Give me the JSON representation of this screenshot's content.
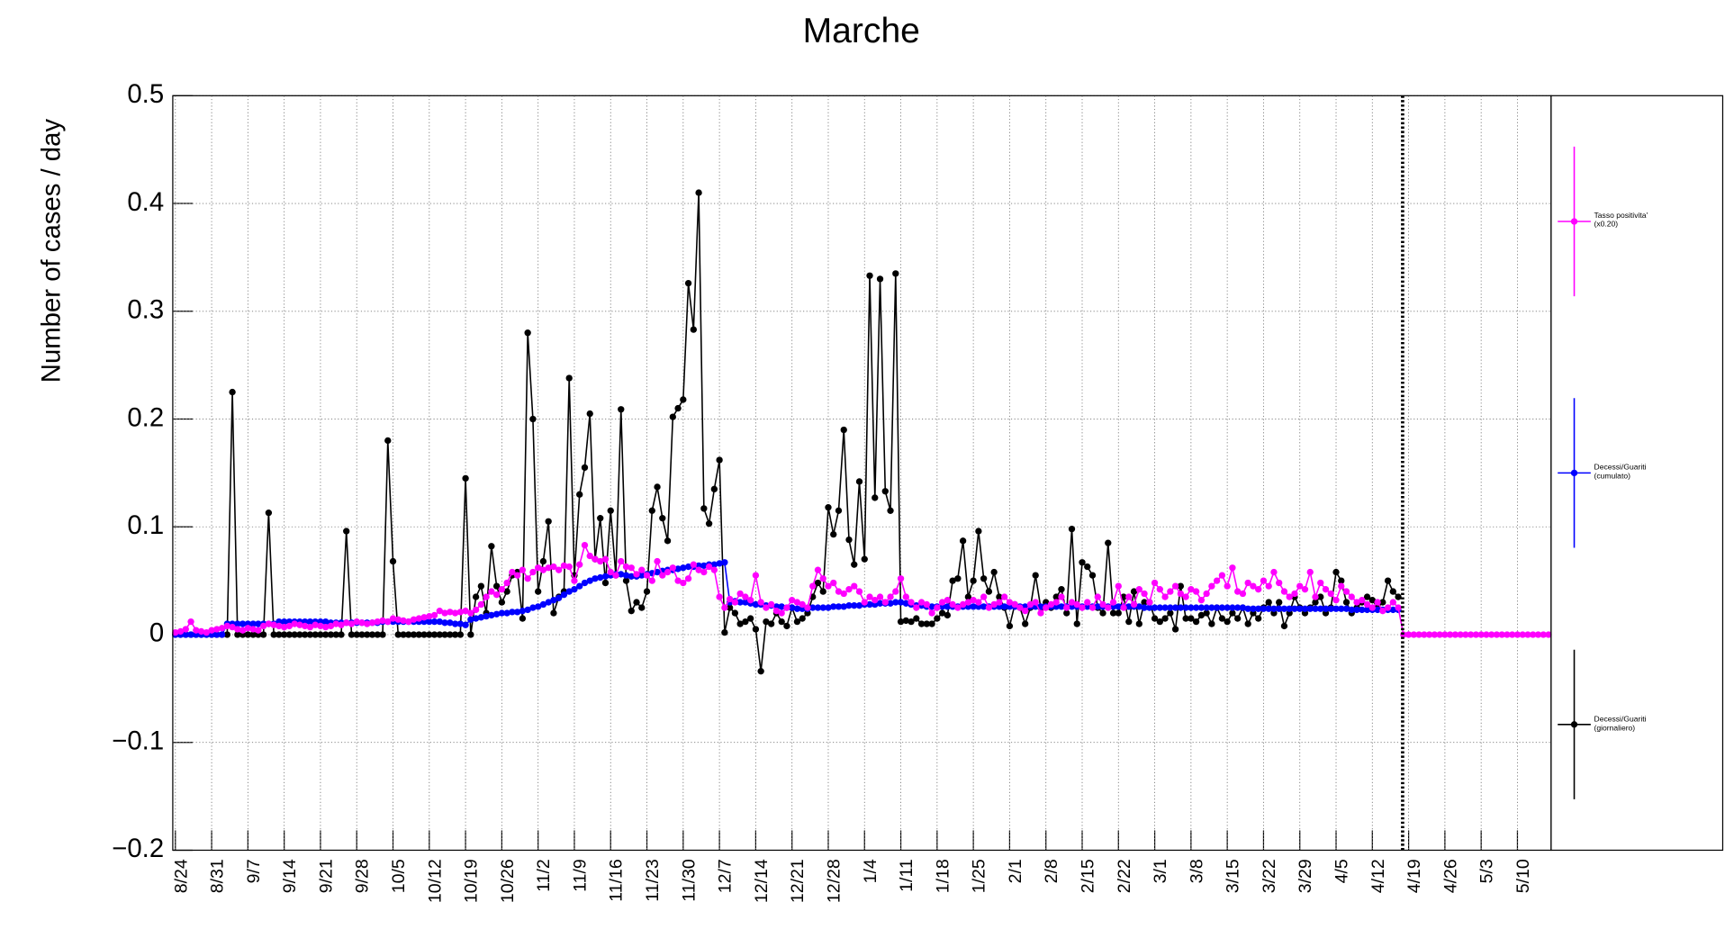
{
  "chart_data": {
    "type": "line",
    "title": "Marche",
    "y_label": "Number of cases / day",
    "categories": [
      "8/24",
      null,
      null,
      null,
      null,
      null,
      null,
      "8/31",
      null,
      null,
      null,
      null,
      null,
      null,
      "9/7",
      null,
      null,
      null,
      null,
      null,
      null,
      "9/14",
      null,
      null,
      null,
      null,
      null,
      null,
      "9/21",
      null,
      null,
      null,
      null,
      null,
      null,
      "9/28",
      null,
      null,
      null,
      null,
      null,
      null,
      "10/5",
      null,
      null,
      null,
      null,
      null,
      null,
      "10/12",
      null,
      null,
      null,
      null,
      null,
      null,
      "10/19",
      null,
      null,
      null,
      null,
      null,
      null,
      "10/26",
      null,
      null,
      null,
      null,
      null,
      null,
      "11/2",
      null,
      null,
      null,
      null,
      null,
      null,
      "11/9",
      null,
      null,
      null,
      null,
      null,
      null,
      "11/16",
      null,
      null,
      null,
      null,
      null,
      null,
      "11/23",
      null,
      null,
      null,
      null,
      null,
      null,
      "11/30",
      null,
      null,
      null,
      null,
      null,
      null,
      "12/7",
      null,
      null,
      null,
      null,
      null,
      null,
      "12/14",
      null,
      null,
      null,
      null,
      null,
      null,
      "12/21",
      null,
      null,
      null,
      null,
      null,
      null,
      "12/28",
      null,
      null,
      null,
      null,
      null,
      null,
      "1/4",
      null,
      null,
      null,
      null,
      null,
      null,
      "1/11",
      null,
      null,
      null,
      null,
      null,
      null,
      "1/18",
      null,
      null,
      null,
      null,
      null,
      null,
      "1/25",
      null,
      null,
      null,
      null,
      null,
      null,
      "2/1",
      null,
      null,
      null,
      null,
      null,
      null,
      "2/8",
      null,
      null,
      null,
      null,
      null,
      null,
      "2/15",
      null,
      null,
      null,
      null,
      null,
      null,
      "2/22",
      null,
      null,
      null,
      null,
      null,
      null,
      "3/1",
      null,
      null,
      null,
      null,
      null,
      null,
      "3/8",
      null,
      null,
      null,
      null,
      null,
      null,
      "3/15",
      null,
      null,
      null,
      null,
      null,
      null,
      "3/22",
      null,
      null,
      null,
      null,
      null,
      null,
      "3/29",
      null,
      null,
      null,
      null,
      null,
      null,
      "4/5",
      null,
      null,
      null,
      null,
      null,
      null,
      "4/12",
      null,
      null,
      null,
      null,
      null,
      null,
      "4/19",
      null,
      null,
      null,
      null,
      null,
      null,
      "4/26",
      null,
      null,
      null,
      null,
      null,
      null,
      "5/3",
      null,
      null,
      null,
      null,
      null,
      null,
      "5/10",
      null,
      null,
      null,
      null,
      null,
      null
    ],
    "ylim": [
      -0.2,
      0.5
    ],
    "yticks": [
      {
        "value": -0.2,
        "label": "−0.2"
      },
      {
        "value": -0.1,
        "label": "−0.1"
      },
      0,
      0.1,
      0.2,
      0.3,
      0.4,
      0.5
    ],
    "grid": true,
    "legend": "right",
    "series": [
      {
        "name": "Decessi/Guariti (giornaliero)",
        "color": "#000000",
        "values": [
          0,
          0,
          0,
          0,
          0,
          0,
          0,
          0,
          0,
          0,
          0,
          0.225,
          0,
          0,
          0,
          0,
          0,
          0,
          0.113,
          0,
          0,
          0,
          0,
          0,
          0,
          0,
          0,
          0,
          0,
          0,
          0,
          0,
          0,
          0.096,
          0,
          0,
          0,
          0,
          0,
          0,
          0,
          0.18,
          0.068,
          0,
          0,
          0,
          0,
          0,
          0,
          0,
          0,
          0,
          0,
          0,
          0,
          0,
          0.145,
          0,
          0.035,
          0.045,
          0.02,
          0.082,
          0.045,
          0.03,
          0.04,
          0.055,
          0.058,
          0.015,
          0.28,
          0.2,
          0.04,
          0.068,
          0.105,
          0.02,
          0.035,
          0.04,
          0.238,
          0.055,
          0.13,
          0.155,
          0.205,
          0.07,
          0.108,
          0.048,
          0.115,
          0.055,
          0.209,
          0.05,
          0.022,
          0.03,
          0.025,
          0.04,
          0.115,
          0.137,
          0.108,
          0.087,
          0.202,
          0.21,
          0.218,
          0.326,
          0.283,
          0.41,
          0.117,
          0.103,
          0.135,
          0.162,
          0.002,
          0.025,
          0.02,
          0.01,
          0.012,
          0.015,
          0.005,
          -0.034,
          0.012,
          0.01,
          0.02,
          0.012,
          0.008,
          0.025,
          0.012,
          0.015,
          0.02,
          0.035,
          0.048,
          0.04,
          0.118,
          0.093,
          0.115,
          0.19,
          0.088,
          0.065,
          0.142,
          0.07,
          0.333,
          0.127,
          0.33,
          0.133,
          0.115,
          0.335,
          0.012,
          0.013,
          0.012,
          0.015,
          0.01,
          0.01,
          0.01,
          0.015,
          0.02,
          0.018,
          0.05,
          0.052,
          0.087,
          0.035,
          0.05,
          0.096,
          0.052,
          0.04,
          0.058,
          0.035,
          0.025,
          0.008,
          0.028,
          0.025,
          0.01,
          0.025,
          0.055,
          0.025,
          0.03,
          0.025,
          0.035,
          0.042,
          0.02,
          0.098,
          0.01,
          0.067,
          0.063,
          0.055,
          0.025,
          0.02,
          0.085,
          0.02,
          0.02,
          0.035,
          0.012,
          0.04,
          0.01,
          0.03,
          0.03,
          0.015,
          0.012,
          0.015,
          0.02,
          0.005,
          0.045,
          0.015,
          0.015,
          0.012,
          0.018,
          0.02,
          0.01,
          0.025,
          0.015,
          0.012,
          0.02,
          0.015,
          0.025,
          0.01,
          0.02,
          0.015,
          0.025,
          0.03,
          0.02,
          0.03,
          0.008,
          0.02,
          0.035,
          0.025,
          0.02,
          0.025,
          0.03,
          0.035,
          0.02,
          0.025,
          0.058,
          0.05,
          0.03,
          0.02,
          0.025,
          0.03,
          0.035,
          0.032,
          0.025,
          0.03,
          0.05,
          0.04,
          0.035,
          null,
          null,
          null,
          null,
          null,
          null,
          null,
          null,
          null,
          null,
          null,
          null,
          null,
          null,
          null,
          null,
          null,
          null,
          null,
          null,
          null,
          null,
          null,
          null,
          null,
          null,
          null,
          null,
          null
        ]
      },
      {
        "name": "Decessi/Guariti (cumulato)",
        "color": "#0000ff",
        "values": [
          0,
          0,
          0,
          0,
          0,
          0,
          0,
          0,
          0,
          0,
          0.01,
          0.01,
          0.01,
          0.01,
          0.01,
          0.01,
          0.01,
          0.01,
          0.01,
          0.01,
          0.012,
          0.012,
          0.012,
          0.012,
          0.012,
          0.012,
          0.012,
          0.012,
          0.012,
          0.012,
          0.011,
          0.011,
          0.011,
          0.011,
          0.011,
          0.011,
          0.011,
          0.011,
          0.011,
          0.011,
          0.012,
          0.012,
          0.012,
          0.012,
          0.012,
          0.012,
          0.012,
          0.012,
          0.012,
          0.012,
          0.012,
          0.012,
          0.011,
          0.011,
          0.01,
          0.01,
          0.009,
          0.014,
          0.015,
          0.016,
          0.017,
          0.018,
          0.019,
          0.02,
          0.02,
          0.021,
          0.021,
          0.022,
          0.023,
          0.025,
          0.026,
          0.028,
          0.03,
          0.032,
          0.034,
          0.037,
          0.04,
          0.042,
          0.045,
          0.048,
          0.05,
          0.052,
          0.053,
          0.054,
          0.055,
          0.056,
          0.056,
          0.055,
          0.054,
          0.054,
          0.055,
          0.056,
          0.057,
          0.058,
          0.059,
          0.06,
          0.06,
          0.061,
          0.062,
          0.063,
          0.063,
          0.064,
          0.064,
          0.065,
          0.065,
          0.066,
          0.067,
          0.03,
          0.031,
          0.03,
          0.03,
          0.029,
          0.028,
          0.028,
          0.027,
          0.027,
          0.026,
          0.026,
          0.025,
          0.025,
          0.024,
          0.024,
          0.024,
          0.025,
          0.025,
          0.025,
          0.025,
          0.026,
          0.026,
          0.026,
          0.027,
          0.027,
          0.027,
          0.028,
          0.028,
          0.028,
          0.029,
          0.029,
          0.029,
          0.03,
          0.03,
          0.029,
          0.028,
          0.027,
          0.027,
          0.026,
          0.026,
          0.026,
          0.026,
          0.026,
          0.026,
          0.026,
          0.026,
          0.026,
          0.026,
          0.026,
          0.026,
          0.026,
          0.026,
          0.026,
          0.026,
          0.026,
          0.026,
          0.026,
          0.026,
          0.026,
          0.026,
          0.026,
          0.026,
          0.026,
          0.026,
          0.026,
          0.026,
          0.026,
          0.026,
          0.026,
          0.026,
          0.026,
          0.026,
          0.026,
          0.026,
          0.026,
          0.026,
          0.026,
          0.026,
          0.026,
          0.026,
          0.025,
          0.025,
          0.025,
          0.025,
          0.025,
          0.025,
          0.025,
          0.025,
          0.025,
          0.025,
          0.025,
          0.025,
          0.025,
          0.025,
          0.025,
          0.025,
          0.025,
          0.025,
          0.025,
          0.025,
          0.024,
          0.024,
          0.024,
          0.024,
          0.024,
          0.024,
          0.024,
          0.024,
          0.024,
          0.024,
          0.024,
          0.024,
          0.024,
          0.024,
          0.024,
          0.024,
          0.024,
          0.024,
          0.024,
          0.024,
          0.023,
          0.023,
          0.023,
          0.023,
          0.023,
          0.023,
          0.023,
          0.023,
          0.023,
          0.023,
          null,
          null,
          null,
          null,
          null,
          null,
          null,
          null,
          null,
          null,
          null,
          null,
          null,
          null,
          null,
          null,
          null,
          null,
          null,
          null,
          null,
          null,
          null,
          null,
          null,
          null,
          null,
          null,
          null
        ]
      },
      {
        "name": "Tasso positivita' (x0.20)",
        "color": "#ff00ff",
        "values": [
          0.002,
          0.003,
          0.005,
          0.012,
          0.004,
          0.003,
          0.002,
          0.004,
          0.005,
          0.006,
          0.008,
          0.007,
          0.005,
          0.004,
          0.006,
          0.005,
          0.004,
          0.008,
          0.01,
          0.009,
          0.008,
          0.007,
          0.008,
          0.01,
          0.009,
          0.008,
          0.007,
          0.009,
          0.008,
          0.007,
          0.008,
          0.01,
          0.009,
          0.011,
          0.01,
          0.012,
          0.011,
          0.01,
          0.011,
          0.012,
          0.013,
          0.012,
          0.015,
          0.014,
          0.013,
          0.012,
          0.014,
          0.015,
          0.016,
          0.017,
          0.018,
          0.022,
          0.02,
          0.021,
          0.02,
          0.021,
          0.022,
          0.02,
          0.023,
          0.028,
          0.035,
          0.04,
          0.037,
          0.042,
          0.048,
          0.058,
          0.055,
          0.06,
          0.052,
          0.058,
          0.062,
          0.06,
          0.062,
          0.063,
          0.06,
          0.064,
          0.063,
          0.05,
          0.065,
          0.083,
          0.073,
          0.07,
          0.068,
          0.07,
          0.058,
          0.055,
          0.068,
          0.063,
          0.062,
          0.056,
          0.06,
          0.055,
          0.05,
          0.068,
          0.055,
          0.058,
          0.062,
          0.05,
          0.048,
          0.052,
          0.065,
          0.06,
          0.058,
          0.063,
          0.06,
          0.035,
          0.025,
          0.033,
          0.03,
          0.038,
          0.035,
          0.032,
          0.055,
          0.03,
          0.025,
          0.028,
          0.022,
          0.02,
          0.025,
          0.032,
          0.03,
          0.028,
          0.025,
          0.045,
          0.06,
          0.052,
          0.045,
          0.048,
          0.04,
          0.038,
          0.042,
          0.045,
          0.04,
          0.03,
          0.035,
          0.032,
          0.035,
          0.03,
          0.035,
          0.04,
          0.052,
          0.035,
          0.03,
          0.025,
          0.03,
          0.028,
          0.02,
          0.025,
          0.03,
          0.032,
          0.028,
          0.025,
          0.028,
          0.03,
          0.032,
          0.03,
          0.035,
          0.025,
          0.028,
          0.03,
          0.035,
          0.03,
          0.028,
          0.025,
          0.022,
          0.028,
          0.03,
          0.02,
          0.025,
          0.028,
          0.03,
          0.035,
          0.025,
          0.03,
          0.028,
          0.025,
          0.03,
          0.025,
          0.035,
          0.028,
          0.025,
          0.03,
          0.045,
          0.025,
          0.035,
          0.028,
          0.042,
          0.038,
          0.03,
          0.048,
          0.042,
          0.035,
          0.04,
          0.045,
          0.038,
          0.035,
          0.042,
          0.04,
          0.032,
          0.038,
          0.045,
          0.05,
          0.055,
          0.045,
          0.062,
          0.04,
          0.038,
          0.048,
          0.045,
          0.042,
          0.05,
          0.045,
          0.058,
          0.048,
          0.04,
          0.035,
          0.038,
          0.045,
          0.042,
          0.058,
          0.035,
          0.048,
          0.042,
          0.038,
          0.032,
          0.045,
          0.04,
          0.035,
          0.03,
          0.032,
          0.028,
          0.025,
          0.03,
          0.022,
          0.025,
          0.03,
          0.025,
          0,
          0,
          0,
          0,
          0,
          0,
          0,
          0,
          0,
          0,
          0,
          0,
          0,
          0,
          0,
          0,
          0,
          0,
          0,
          0,
          0,
          0,
          0,
          0,
          0,
          0,
          0,
          0,
          0
        ]
      }
    ]
  }
}
